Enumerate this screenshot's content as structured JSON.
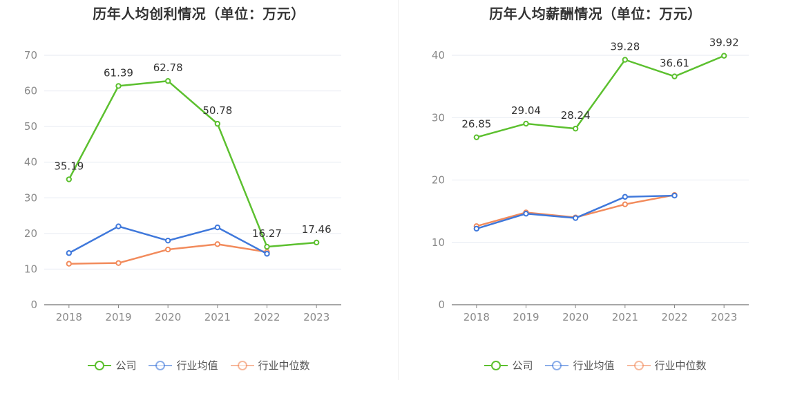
{
  "colors": {
    "company": "#5cc02f",
    "industry_avg": "#3f78db",
    "industry_median": "#f28b5c",
    "axis": "#8a8a8a",
    "grid": "#e6eaf2"
  },
  "legend": [
    "公司",
    "行业均值",
    "行业中位数"
  ],
  "chart_data": [
    {
      "type": "line",
      "title": "历年人均创利情况（单位：万元）",
      "categories": [
        "2018",
        "2019",
        "2020",
        "2021",
        "2022",
        "2023"
      ],
      "ylim": [
        0,
        70
      ],
      "yticks": [
        "0",
        "10",
        "20",
        "30",
        "40",
        "50",
        "60",
        "70"
      ],
      "grid": true,
      "legend_position": "bottom",
      "series": [
        {
          "name": "公司",
          "values": [
            35.19,
            61.39,
            62.78,
            50.78,
            16.27,
            17.46
          ],
          "labels": [
            "35.19",
            "61.39",
            "62.78",
            "50.78",
            "16.27",
            "17.46"
          ]
        },
        {
          "name": "行业均值",
          "values": [
            14.5,
            22.0,
            18.0,
            21.7,
            14.3,
            null
          ]
        },
        {
          "name": "行业中位数",
          "values": [
            11.5,
            11.7,
            15.5,
            17.0,
            14.8,
            null
          ]
        }
      ]
    },
    {
      "type": "line",
      "title": "历年人均薪酬情况（单位：万元）",
      "categories": [
        "2018",
        "2019",
        "2020",
        "2021",
        "2022",
        "2023"
      ],
      "ylim": [
        0,
        40
      ],
      "yticks": [
        "0",
        "10",
        "20",
        "30",
        "40"
      ],
      "grid": true,
      "legend_position": "bottom",
      "series": [
        {
          "name": "公司",
          "values": [
            26.85,
            29.04,
            28.24,
            39.28,
            36.61,
            39.92
          ],
          "labels": [
            "26.85",
            "29.04",
            "28.24",
            "39.28",
            "36.61",
            "39.92"
          ]
        },
        {
          "name": "行业均值",
          "values": [
            12.2,
            14.6,
            13.9,
            17.3,
            17.5,
            null
          ]
        },
        {
          "name": "行业中位数",
          "values": [
            12.6,
            14.8,
            14.0,
            16.1,
            17.6,
            null
          ]
        }
      ]
    }
  ]
}
